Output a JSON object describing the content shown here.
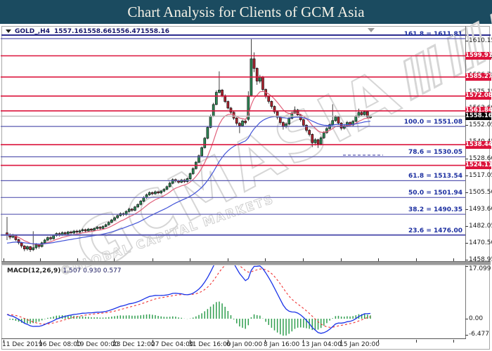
{
  "title": "Chart Analysis for Clients of GCM Asia",
  "chart_header": {
    "symbol": "GOLD_,H4",
    "open": "1557.16",
    "high": "1558.66",
    "low": "1556.47",
    "close": "1558.16"
  },
  "watermark": {
    "main": "GCMASIA",
    "sub": "©GLOBAL CAPITAL MARKETS"
  },
  "macd_panel": {
    "name": "MACD(12,26,9)",
    "values": "1.507 0.930 0.577",
    "max_label": "17.099",
    "zero_label": "0.00",
    "min_label": "-6.477"
  },
  "colors": {
    "title_bar": "#1b4b60",
    "title_text": "#f4f1e6",
    "up_candle": "#2e8b57",
    "down_candle": "#b22430",
    "candle_outline": "#111111",
    "resistance_line": "#dc143c",
    "fib_line": "#5a5ab2",
    "fib_label": "#1c2fa0",
    "ma_fast": "#e0607a",
    "ma_slow": "#4254d8",
    "current_price_line": "#bbbbbb",
    "current_tag_bg": "#000000",
    "tag_bg": "#dc143c",
    "tag_text": "#ffffff",
    "macd_line": "#1a33e8",
    "macd_signal": "#f03333",
    "macd_hist": "#2f9e4e"
  },
  "chart_data": {
    "type": "candlestick",
    "symbol": "GOLD_",
    "timeframe": "H4",
    "ylim": [
      1457,
      1615
    ],
    "current_price": 1558.16,
    "y_ticks": [
      "1610.15",
      "1575.15",
      "1552.05",
      "1528.60",
      "1517.05",
      "1505.50",
      "1493.60",
      "1482.05",
      "1470.50",
      "1458.95"
    ],
    "hidden_y_ticks": [
      "1598.60",
      "1586.70",
      "1563.69",
      "1540.45"
    ],
    "resistance_levels": [
      1599.91,
      1585.27,
      1572.08,
      1561.84,
      1538.44,
      1524.11
    ],
    "fib_levels": [
      {
        "ratio": "161.8",
        "price": 1611.81,
        "label": "161.8 = 1611.81"
      },
      {
        "ratio": "100.0",
        "price": 1551.08,
        "label": "100.0 = 1551.08"
      },
      {
        "ratio": "78.6",
        "price": 1530.05,
        "label": "78.6 = 1530.05"
      },
      {
        "ratio": "61.8",
        "price": 1513.54,
        "label": "61.8 = 1513.54"
      },
      {
        "ratio": "50.0",
        "price": 1501.94,
        "label": "50.0 = 1501.94"
      },
      {
        "ratio": "38.2",
        "price": 1490.35,
        "label": "38.2 = 1490.35"
      },
      {
        "ratio": "23.6",
        "price": 1476.0,
        "label": "23.6 = 1476.00"
      }
    ],
    "short_dashed_level": 1531.2,
    "time_labels": [
      "11 Dec 2019",
      "16 Dec 08:00",
      "19 Dec 00:00",
      "23 Dec 12:00",
      "27 Dec 04:00",
      "31 Dec 16:00",
      "6 Jan 00:00",
      "8 Jan 16:00",
      "13 Jan 04:00",
      "15 Jan 20:00"
    ],
    "macd": {
      "params": [
        12,
        26,
        9
      ],
      "last_macd": 1.507,
      "last_signal": 0.93,
      "last_hist": 0.577,
      "axis_max": 17.099,
      "axis_min": -6.477
    },
    "moving_averages": [
      {
        "type": "ema",
        "period": 10,
        "color_key": "ma_fast"
      },
      {
        "type": "ema",
        "period": 30,
        "color_key": "ma_slow"
      }
    ],
    "candles": [
      [
        1477.5,
        1488.5,
        1472.5,
        1476.0
      ],
      [
        1476.0,
        1477.2,
        1473.0,
        1474.5
      ],
      [
        1474.5,
        1476.8,
        1473.8,
        1475.6
      ],
      [
        1475.6,
        1476.2,
        1471.8,
        1472.8
      ],
      [
        1472.8,
        1473.4,
        1469.4,
        1470.6
      ],
      [
        1470.6,
        1471.2,
        1467.0,
        1468.4
      ],
      [
        1468.4,
        1469.0,
        1464.8,
        1466.3
      ],
      [
        1466.3,
        1468.8,
        1465.2,
        1467.9
      ],
      [
        1467.9,
        1468.4,
        1464.3,
        1465.8
      ],
      [
        1465.8,
        1478.6,
        1464.9,
        1467.2
      ],
      [
        1467.2,
        1470.4,
        1466.0,
        1469.3
      ],
      [
        1469.3,
        1470.0,
        1466.6,
        1468.1
      ],
      [
        1468.1,
        1471.4,
        1467.4,
        1470.6
      ],
      [
        1470.6,
        1473.4,
        1469.8,
        1472.5
      ],
      [
        1472.5,
        1475.0,
        1471.6,
        1474.2
      ],
      [
        1474.2,
        1475.2,
        1472.2,
        1473.4
      ],
      [
        1473.4,
        1476.4,
        1472.8,
        1475.6
      ],
      [
        1475.6,
        1477.8,
        1474.8,
        1477.0
      ],
      [
        1477.0,
        1477.9,
        1475.0,
        1476.2
      ],
      [
        1476.2,
        1478.5,
        1475.4,
        1477.6
      ],
      [
        1477.6,
        1478.4,
        1475.6,
        1476.8
      ],
      [
        1476.8,
        1478.9,
        1476.0,
        1478.1
      ],
      [
        1478.1,
        1479.0,
        1476.3,
        1477.4
      ],
      [
        1477.4,
        1479.5,
        1476.6,
        1478.7
      ],
      [
        1478.7,
        1479.6,
        1477.0,
        1478.0
      ],
      [
        1478.0,
        1479.8,
        1477.2,
        1478.9
      ],
      [
        1478.9,
        1480.5,
        1478.0,
        1479.7
      ],
      [
        1479.7,
        1480.4,
        1477.8,
        1478.8
      ],
      [
        1478.8,
        1480.9,
        1478.0,
        1480.1
      ],
      [
        1480.1,
        1480.8,
        1478.4,
        1479.3
      ],
      [
        1479.3,
        1481.3,
        1478.6,
        1480.5
      ],
      [
        1480.5,
        1482.2,
        1479.7,
        1481.4
      ],
      [
        1481.4,
        1482.1,
        1479.6,
        1480.6
      ],
      [
        1480.6,
        1482.7,
        1479.9,
        1481.9
      ],
      [
        1481.9,
        1483.9,
        1481.2,
        1483.1
      ],
      [
        1483.1,
        1485.5,
        1482.4,
        1484.7
      ],
      [
        1484.7,
        1487.2,
        1484.0,
        1486.4
      ],
      [
        1486.4,
        1488.7,
        1485.7,
        1487.9
      ],
      [
        1487.9,
        1490.3,
        1487.2,
        1489.4
      ],
      [
        1489.4,
        1491.7,
        1488.7,
        1490.8
      ],
      [
        1490.8,
        1491.6,
        1489.1,
        1490.1
      ],
      [
        1490.1,
        1493.1,
        1489.4,
        1492.3
      ],
      [
        1492.3,
        1494.8,
        1491.6,
        1493.9
      ],
      [
        1493.9,
        1494.7,
        1492.0,
        1493.1
      ],
      [
        1493.1,
        1496.2,
        1492.4,
        1495.4
      ],
      [
        1495.4,
        1497.9,
        1494.6,
        1497.1
      ],
      [
        1497.1,
        1500.2,
        1496.4,
        1499.4
      ],
      [
        1499.4,
        1502.8,
        1498.7,
        1501.9
      ],
      [
        1501.9,
        1504.7,
        1501.0,
        1503.8
      ],
      [
        1503.8,
        1506.2,
        1503.0,
        1505.3
      ],
      [
        1505.3,
        1506.1,
        1503.4,
        1504.5
      ],
      [
        1504.5,
        1506.8,
        1503.8,
        1505.9
      ],
      [
        1505.9,
        1506.7,
        1504.2,
        1505.1
      ],
      [
        1505.1,
        1507.2,
        1504.4,
        1506.4
      ],
      [
        1506.4,
        1508.4,
        1505.6,
        1507.6
      ],
      [
        1507.6,
        1510.2,
        1506.9,
        1509.4
      ],
      [
        1509.4,
        1512.6,
        1508.8,
        1511.8
      ],
      [
        1511.8,
        1515.2,
        1511.0,
        1514.3
      ],
      [
        1514.3,
        1515.1,
        1512.3,
        1513.4
      ],
      [
        1513.4,
        1514.2,
        1511.5,
        1512.5
      ],
      [
        1512.5,
        1514.8,
        1511.8,
        1514.0
      ],
      [
        1514.0,
        1514.9,
        1512.0,
        1512.9
      ],
      [
        1512.9,
        1515.7,
        1512.2,
        1514.9
      ],
      [
        1514.9,
        1519.2,
        1514.2,
        1518.4
      ],
      [
        1518.4,
        1522.8,
        1517.6,
        1521.9
      ],
      [
        1521.9,
        1527.2,
        1521.2,
        1526.3
      ],
      [
        1526.3,
        1531.7,
        1525.6,
        1530.8
      ],
      [
        1530.8,
        1537.3,
        1530.1,
        1536.4
      ],
      [
        1536.4,
        1543.8,
        1535.8,
        1542.9
      ],
      [
        1542.9,
        1551.4,
        1542.2,
        1550.4
      ],
      [
        1550.4,
        1559.2,
        1549.8,
        1558.1
      ],
      [
        1558.1,
        1567.4,
        1557.6,
        1566.2
      ],
      [
        1566.2,
        1576.0,
        1565.8,
        1574.6
      ],
      [
        1574.6,
        1589.2,
        1573.8,
        1576.2
      ],
      [
        1576.2,
        1577.0,
        1571.2,
        1572.4
      ],
      [
        1572.4,
        1573.2,
        1567.2,
        1568.3
      ],
      [
        1568.3,
        1569.0,
        1562.8,
        1563.8
      ],
      [
        1563.8,
        1564.6,
        1559.8,
        1560.9
      ],
      [
        1560.9,
        1561.6,
        1555.6,
        1556.8
      ],
      [
        1556.8,
        1557.6,
        1551.8,
        1553.2
      ],
      [
        1553.2,
        1554.2,
        1546.4,
        1551.6
      ],
      [
        1551.6,
        1555.8,
        1550.9,
        1554.8
      ],
      [
        1554.8,
        1555.9,
        1552.4,
        1553.6
      ],
      [
        1556.0,
        1575.4,
        1554.8,
        1572.3
      ],
      [
        1572.3,
        1611.4,
        1571.6,
        1597.8
      ],
      [
        1597.8,
        1602.3,
        1588.6,
        1591.2
      ],
      [
        1591.2,
        1592.0,
        1579.8,
        1582.4
      ],
      [
        1582.4,
        1586.8,
        1580.9,
        1585.3
      ],
      [
        1585.3,
        1586.0,
        1575.2,
        1576.6
      ],
      [
        1576.6,
        1577.4,
        1570.4,
        1571.8
      ],
      [
        1571.8,
        1572.6,
        1566.9,
        1568.4
      ],
      [
        1568.4,
        1569.0,
        1563.4,
        1564.9
      ],
      [
        1564.9,
        1565.6,
        1559.8,
        1561.2
      ],
      [
        1561.2,
        1561.9,
        1555.9,
        1557.4
      ],
      [
        1557.4,
        1558.2,
        1552.3,
        1553.8
      ],
      [
        1553.8,
        1554.6,
        1548.9,
        1550.9
      ],
      [
        1550.9,
        1553.9,
        1549.8,
        1552.8
      ],
      [
        1552.8,
        1557.6,
        1552.0,
        1556.6
      ],
      [
        1556.6,
        1561.2,
        1555.9,
        1560.2
      ],
      [
        1560.2,
        1564.9,
        1559.6,
        1562.4
      ],
      [
        1562.4,
        1563.2,
        1558.0,
        1559.1
      ],
      [
        1559.1,
        1559.8,
        1554.4,
        1555.7
      ],
      [
        1555.7,
        1556.4,
        1550.6,
        1551.9
      ],
      [
        1551.9,
        1552.6,
        1547.0,
        1548.4
      ],
      [
        1548.4,
        1549.2,
        1544.2,
        1545.6
      ],
      [
        1545.6,
        1546.2,
        1536.8,
        1539.8
      ],
      [
        1539.8,
        1543.0,
        1537.9,
        1541.9
      ],
      [
        1541.9,
        1542.6,
        1536.2,
        1538.9
      ],
      [
        1538.9,
        1544.2,
        1538.0,
        1543.2
      ],
      [
        1543.2,
        1547.8,
        1542.4,
        1546.8
      ],
      [
        1546.8,
        1550.6,
        1545.9,
        1549.6
      ],
      [
        1549.6,
        1553.2,
        1548.8,
        1552.3
      ],
      [
        1552.3,
        1566.4,
        1551.6,
        1555.1
      ],
      [
        1555.1,
        1558.8,
        1554.3,
        1557.6
      ],
      [
        1557.6,
        1558.3,
        1552.2,
        1553.4
      ],
      [
        1553.4,
        1554.1,
        1548.4,
        1549.8
      ],
      [
        1549.8,
        1552.6,
        1548.9,
        1551.4
      ],
      [
        1551.4,
        1554.9,
        1550.7,
        1553.8
      ],
      [
        1553.8,
        1554.6,
        1551.0,
        1552.1
      ],
      [
        1552.1,
        1555.6,
        1551.4,
        1554.6
      ],
      [
        1554.6,
        1558.9,
        1554.0,
        1557.9
      ],
      [
        1557.9,
        1563.4,
        1557.2,
        1560.8
      ],
      [
        1560.8,
        1561.8,
        1558.2,
        1559.2
      ],
      [
        1559.2,
        1562.3,
        1558.6,
        1561.3
      ],
      [
        1561.3,
        1562.0,
        1556.6,
        1557.6
      ],
      [
        1557.16,
        1558.66,
        1556.47,
        1558.16
      ]
    ]
  }
}
